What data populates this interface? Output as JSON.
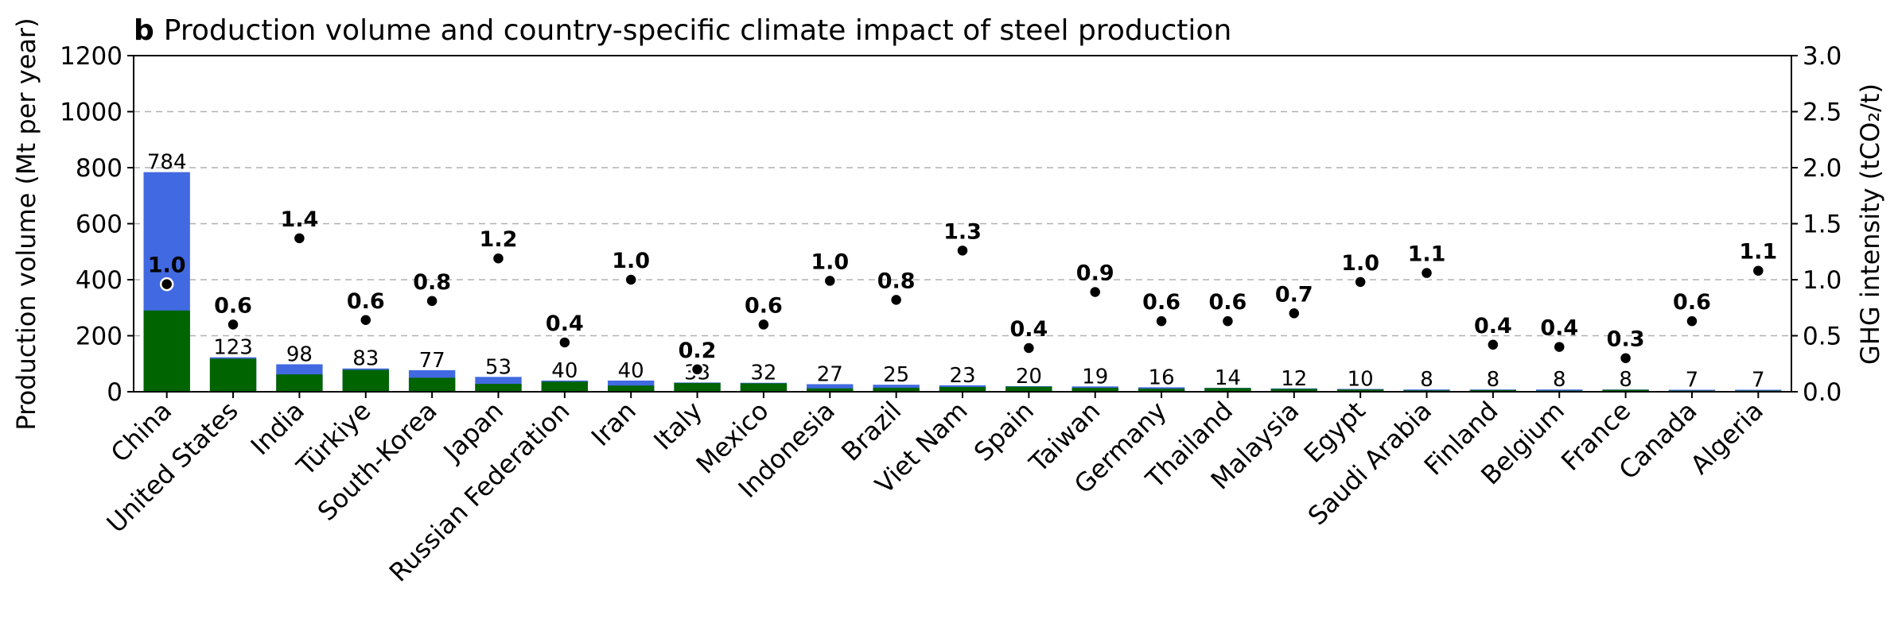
{
  "chart_data": {
    "type": "bar",
    "title_bold": "b",
    "title": "Production volume and country-specific climate impact of steel production",
    "ylabel_left": "Production volume (Mt per year)",
    "ylabel_right": "GHG intensity (tCO₂/t)",
    "ylim_left": [
      0,
      1200
    ],
    "ylim_right": [
      0,
      3.0
    ],
    "left_ticks": [
      "0",
      "200",
      "400",
      "600",
      "800",
      "1000",
      "1200"
    ],
    "right_ticks": [
      "0.0",
      "0.5",
      "1.0",
      "1.5",
      "2.0",
      "2.5",
      "3.0"
    ],
    "grid": true,
    "categories": [
      "China",
      "United States",
      "India",
      "Türkiye",
      "South-Korea",
      "Japan",
      "Russian Federation",
      "Iran",
      "Italy",
      "Mexico",
      "Indonesia",
      "Brazil",
      "Viet Nam",
      "Spain",
      "Taiwan",
      "Germany",
      "Thailand",
      "Malaysia",
      "Egypt",
      "Saudi Arabia",
      "Finland",
      "Belgium",
      "France",
      "Canada",
      "Algeria"
    ],
    "series": [
      {
        "color": "#4169e1",
        "values": [
          784,
          123,
          98,
          83,
          77,
          53,
          40,
          40,
          33,
          32,
          27,
          25,
          23,
          20,
          19,
          16,
          14,
          12,
          10,
          8,
          8,
          8,
          8,
          7,
          7
        ]
      },
      {
        "color": "#006400",
        "values": [
          290,
          118,
          62,
          78,
          50,
          28,
          36,
          22,
          31,
          30,
          12,
          14,
          17,
          18,
          14,
          11,
          13,
          10,
          8,
          5,
          6,
          4,
          7,
          4,
          4
        ]
      }
    ],
    "total_labels": [
      "784",
      "123",
      "98",
      "83",
      "77",
      "53",
      "40",
      "40",
      "33",
      "32",
      "27",
      "25",
      "23",
      "20",
      "19",
      "16",
      "14",
      "12",
      "10",
      "8",
      "8",
      "8",
      "8",
      "7",
      "7"
    ],
    "intensity": {
      "values": [
        0.96,
        0.6,
        1.37,
        0.64,
        0.81,
        1.19,
        0.44,
        1.0,
        0.2,
        0.6,
        0.99,
        0.82,
        1.26,
        0.39,
        0.89,
        0.63,
        0.63,
        0.7,
        0.98,
        1.06,
        0.42,
        0.4,
        0.3,
        0.63,
        1.08
      ],
      "labels": [
        "1.0",
        "0.6",
        "1.4",
        "0.6",
        "0.8",
        "1.2",
        "0.4",
        "1.0",
        "0.2",
        "0.6",
        "1.0",
        "0.8",
        "1.3",
        "0.4",
        "0.9",
        "0.6",
        "0.6",
        "0.7",
        "1.0",
        "1.1",
        "0.4",
        "0.4",
        "0.3",
        "0.6",
        "1.1"
      ],
      "color": "#000000"
    }
  }
}
